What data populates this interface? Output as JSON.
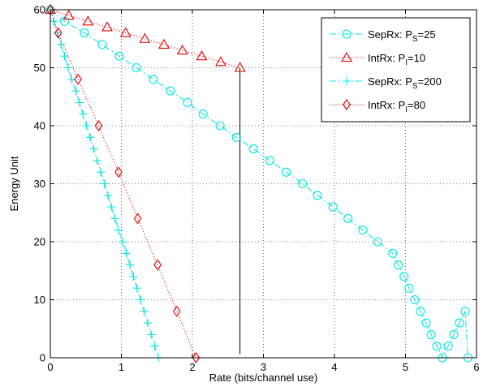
{
  "chart_data": {
    "type": "line",
    "title": "",
    "xlabel": "Rate (bits/channel use)",
    "ylabel": "Energy Unit",
    "xlim": [
      0,
      6
    ],
    "ylim": [
      0,
      60
    ],
    "xticks": [
      0,
      1,
      2,
      3,
      4,
      5,
      6
    ],
    "yticks": [
      0,
      10,
      20,
      30,
      40,
      50,
      60
    ],
    "grid": true,
    "legend_position": "top-right",
    "series": [
      {
        "name": "SepRx: P_S=25",
        "legend_main": "SepRx: P",
        "legend_sub": "S",
        "legend_tail": "=25",
        "color": "#00e5e5",
        "line_style": "dash-dot",
        "marker": "circle",
        "x": [
          0,
          0.2,
          0.48,
          0.73,
          0.97,
          1.21,
          1.45,
          1.69,
          1.93,
          2.15,
          2.39,
          2.62,
          2.86,
          3.09,
          3.32,
          3.55,
          3.76,
          3.98,
          4.19,
          4.4,
          4.61,
          4.82,
          4.9,
          4.98,
          5.05,
          5.13,
          5.21,
          5.29,
          5.36,
          5.44,
          5.52,
          5.6,
          5.68,
          5.76,
          5.84,
          5.88
        ],
        "y": [
          60,
          58,
          56,
          54,
          52,
          50,
          48,
          46,
          44,
          42,
          40,
          38,
          36,
          34,
          32,
          30,
          28,
          26,
          24,
          22,
          20,
          18,
          16,
          14,
          12,
          10,
          8,
          6,
          4,
          2,
          0,
          2,
          4,
          6,
          8,
          0
        ]
      },
      {
        "name": "IntRx: P_I=10",
        "legend_main": "IntRx: P",
        "legend_sub": "I",
        "legend_tail": "=10",
        "color": "#e00000",
        "line_style": "dotted",
        "marker": "triangle",
        "x": [
          0,
          0.26,
          0.53,
          0.8,
          1.06,
          1.33,
          1.6,
          1.86,
          2.13,
          2.4,
          2.67
        ],
        "y": [
          60,
          59,
          58,
          57,
          56,
          55,
          54,
          53,
          52,
          51,
          50
        ]
      },
      {
        "name": "SepRx: P_S=200",
        "legend_main": "SepRx: P",
        "legend_sub": "S",
        "legend_tail": "=200",
        "color": "#00e5e5",
        "line_style": "dash-dot",
        "marker": "plus",
        "x": [
          0,
          0.05,
          0.1,
          0.15,
          0.2,
          0.25,
          0.3,
          0.36,
          0.41,
          0.46,
          0.51,
          0.56,
          0.61,
          0.66,
          0.71,
          0.76,
          0.81,
          0.86,
          0.91,
          0.96,
          1.02,
          1.07,
          1.12,
          1.17,
          1.22,
          1.27,
          1.32,
          1.37,
          1.42,
          1.47,
          1.52
        ],
        "y": [
          60,
          58,
          56,
          54,
          52,
          50,
          48,
          46,
          44,
          42,
          40,
          38,
          36,
          34,
          32,
          30,
          28,
          26,
          24,
          22,
          20,
          18,
          16,
          14,
          12,
          10,
          8,
          6,
          4,
          2,
          0
        ]
      },
      {
        "name": "IntRx: P_I=80",
        "legend_main": "IntRx: P",
        "legend_sub": "I",
        "legend_tail": "=80",
        "color": "#e00000",
        "line_style": "dotted",
        "marker": "diamond",
        "x": [
          0,
          0.11,
          0.39,
          0.68,
          0.96,
          1.23,
          1.51,
          1.78,
          2.05
        ],
        "y": [
          60,
          56,
          48,
          40,
          32,
          24,
          16,
          8,
          0
        ]
      }
    ],
    "annotations": [
      {
        "type": "vertical-line",
        "x": 2.67,
        "y_from": 0.6,
        "y_to": 50,
        "color": "#000000"
      }
    ]
  }
}
